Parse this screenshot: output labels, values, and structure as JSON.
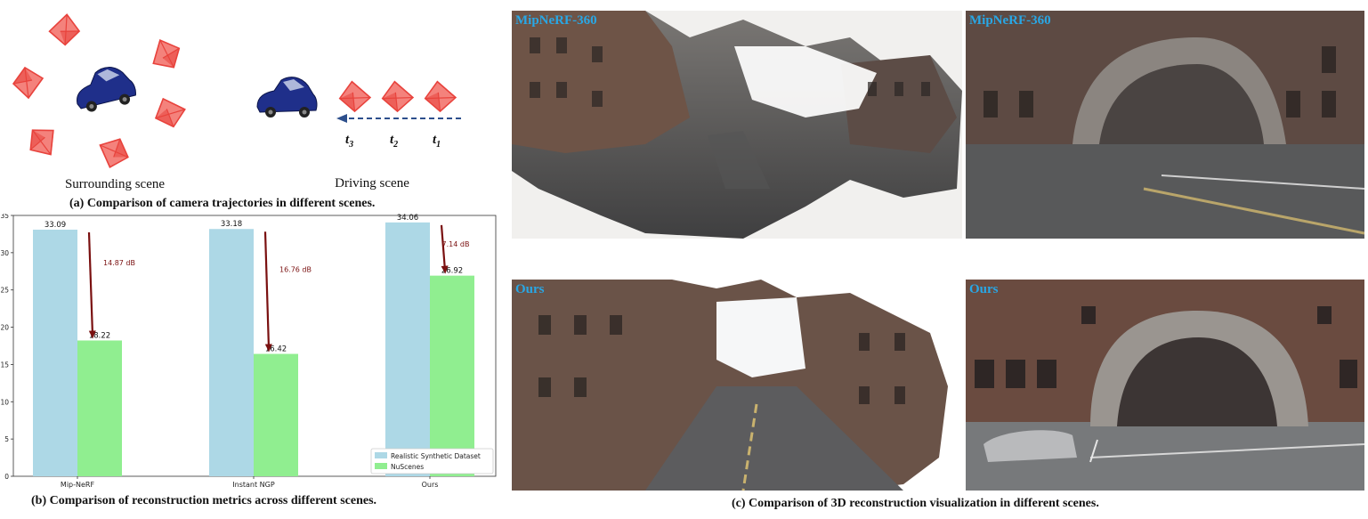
{
  "panel_a": {
    "surrounding_label": "Surrounding scene",
    "driving_label": "Driving scene",
    "time_labels": [
      {
        "base": "t",
        "sub": "3"
      },
      {
        "base": "t",
        "sub": "2"
      },
      {
        "base": "t",
        "sub": "1"
      }
    ],
    "caption": "(a)  Comparison of camera trajectories in different scenes.",
    "colors": {
      "camera": "#e8433d",
      "car": "#1f2f8a",
      "arrow": "#2d4f8c"
    }
  },
  "panel_b": {
    "caption": "(b)  Comparison of reconstruction metrics across different scenes."
  },
  "chart_data": {
    "type": "bar",
    "categories": [
      "Mip-NeRF",
      "Instant NGP",
      "Ours"
    ],
    "series": [
      {
        "name": "Realistic Synthetic Dataset",
        "values": [
          33.09,
          33.18,
          34.06
        ],
        "color": "#add8e6"
      },
      {
        "name": "NuScenes",
        "values": [
          18.22,
          16.42,
          26.92
        ],
        "color": "#90ee90"
      }
    ],
    "value_labels": [
      [
        "33.09",
        "18.22"
      ],
      [
        "33.18",
        "16.42"
      ],
      [
        "34.06",
        "26.92"
      ]
    ],
    "annotations": [
      "14.87 dB",
      "16.76 dB",
      "7.14 dB"
    ],
    "annotation_color": "#7a1010",
    "ylim": [
      0,
      35
    ],
    "yticks": [
      0,
      5,
      10,
      15,
      20,
      25,
      30,
      35
    ],
    "legend_position": "lower-right",
    "grid": false
  },
  "panel_c": {
    "caption": "(c)  Comparison of 3D reconstruction visualization in different scenes.",
    "labels": [
      "MipNeRF-360",
      "MipNeRF-360",
      "Ours",
      "Ours"
    ],
    "label_color": "#29a7e5"
  }
}
